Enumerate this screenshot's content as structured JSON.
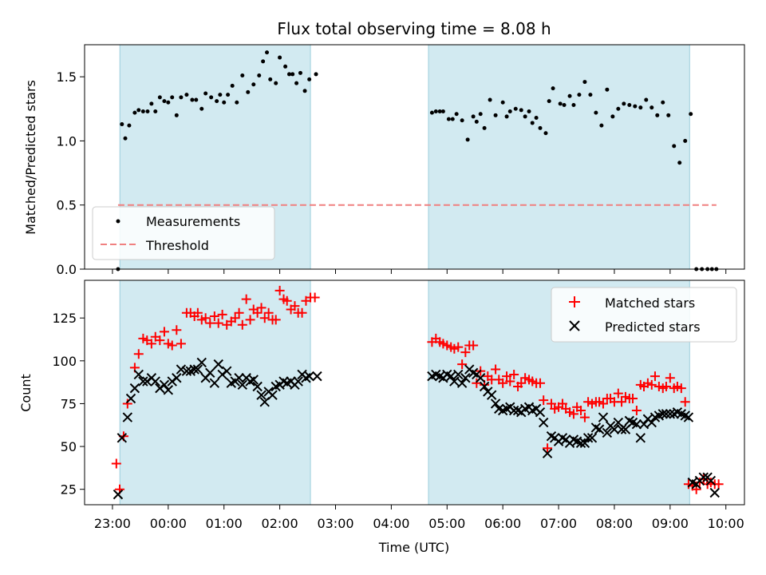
{
  "chart_data": [
    {
      "type": "scatter",
      "title": "Flux total observing time = 8.08 h",
      "xlabel": "",
      "ylabel": "Matched/Predicted stars",
      "xlim_hours": [
        -1.5,
        10.333
      ],
      "ylim": [
        0,
        1.75
      ],
      "yticks": [
        0.0,
        0.5,
        1.0,
        1.5
      ],
      "ytick_labels": [
        "0.0",
        "0.5",
        "1.0",
        "1.5"
      ],
      "xtick_labels": [],
      "legend_position": "lower-left",
      "legend": [
        "Measurements",
        "Threshold"
      ],
      "shaded_intervals_hours": [
        [
          -0.867,
          2.55
        ],
        [
          4.667,
          9.35
        ]
      ],
      "threshold": {
        "name": "Threshold",
        "y": 0.5,
        "x_from": -0.9,
        "x_to": 9.83,
        "color": "#f08080",
        "style": "dashed"
      },
      "series": [
        {
          "name": "Measurements",
          "marker": "dot",
          "color": "#000000",
          "x": [
            -0.9,
            -0.83,
            -0.77,
            -0.7,
            -0.6,
            -0.53,
            -0.45,
            -0.37,
            -0.3,
            -0.23,
            -0.15,
            -0.07,
            0.0,
            0.07,
            0.15,
            0.23,
            0.33,
            0.43,
            0.5,
            0.6,
            0.67,
            0.77,
            0.87,
            0.93,
            1.0,
            1.07,
            1.15,
            1.23,
            1.33,
            1.43,
            1.53,
            1.63,
            1.7,
            1.77,
            1.83,
            1.93,
            2.0,
            2.1,
            2.17,
            2.23,
            2.3,
            2.37,
            2.45,
            2.53,
            2.65,
            4.73,
            4.8,
            4.87,
            4.93,
            5.03,
            5.1,
            5.17,
            5.27,
            5.37,
            5.47,
            5.53,
            5.6,
            5.67,
            5.77,
            5.87,
            6.0,
            6.07,
            6.13,
            6.23,
            6.33,
            6.4,
            6.47,
            6.53,
            6.6,
            6.67,
            6.77,
            6.83,
            6.9,
            7.03,
            7.1,
            7.2,
            7.27,
            7.37,
            7.47,
            7.57,
            7.67,
            7.77,
            7.87,
            7.97,
            8.07,
            8.17,
            8.27,
            8.37,
            8.47,
            8.57,
            8.67,
            8.77,
            8.87,
            8.97,
            9.07,
            9.17,
            9.27,
            9.37,
            9.47,
            9.57,
            9.67,
            9.75,
            9.83
          ],
          "y": [
            0.0,
            1.13,
            1.02,
            1.12,
            1.22,
            1.24,
            1.23,
            1.23,
            1.29,
            1.23,
            1.34,
            1.31,
            1.3,
            1.34,
            1.2,
            1.34,
            1.36,
            1.32,
            1.32,
            1.25,
            1.37,
            1.34,
            1.31,
            1.36,
            1.3,
            1.36,
            1.43,
            1.3,
            1.51,
            1.38,
            1.44,
            1.51,
            1.62,
            1.69,
            1.48,
            1.45,
            1.65,
            1.58,
            1.52,
            1.52,
            1.45,
            1.53,
            1.39,
            1.48,
            1.52,
            1.22,
            1.23,
            1.23,
            1.23,
            1.17,
            1.17,
            1.21,
            1.16,
            1.01,
            1.19,
            1.15,
            1.21,
            1.1,
            1.32,
            1.2,
            1.3,
            1.19,
            1.23,
            1.25,
            1.24,
            1.19,
            1.23,
            1.14,
            1.18,
            1.1,
            1.06,
            1.31,
            1.41,
            1.29,
            1.28,
            1.35,
            1.28,
            1.36,
            1.46,
            1.36,
            1.22,
            1.12,
            1.4,
            1.19,
            1.25,
            1.29,
            1.28,
            1.27,
            1.26,
            1.32,
            1.26,
            1.2,
            1.3,
            1.2,
            0.96,
            0.83,
            1.0,
            1.21,
            0.0,
            0.0,
            0.0,
            0.0,
            0.0
          ]
        }
      ]
    },
    {
      "type": "scatter",
      "title": "",
      "xlabel": "Time (UTC)",
      "ylabel": "Count",
      "xlim_hours": [
        -1.5,
        10.333
      ],
      "ylim": [
        16,
        147
      ],
      "yticks": [
        25,
        50,
        75,
        100,
        125
      ],
      "ytick_labels": [
        "25",
        "50",
        "75",
        "100",
        "125"
      ],
      "xtick_hours": [
        -1,
        0,
        1,
        2,
        3,
        4,
        5,
        6,
        7,
        8,
        9,
        10
      ],
      "xtick_labels": [
        "23:00",
        "00:00",
        "01:00",
        "02:00",
        "03:00",
        "04:00",
        "05:00",
        "06:00",
        "07:00",
        "08:00",
        "09:00",
        "10:00"
      ],
      "legend_position": "top-right",
      "legend": [
        "Matched stars",
        "Predicted stars"
      ],
      "shaded_intervals_hours": [
        [
          -0.867,
          2.55
        ],
        [
          4.667,
          9.35
        ]
      ],
      "series": [
        {
          "name": "Matched stars",
          "marker": "plus",
          "color": "#ff0000",
          "x": [
            -0.93,
            -0.87,
            -0.8,
            -0.73,
            -0.6,
            -0.53,
            -0.45,
            -0.38,
            -0.3,
            -0.23,
            -0.15,
            -0.07,
            0.0,
            0.07,
            0.15,
            0.23,
            0.33,
            0.4,
            0.47,
            0.53,
            0.6,
            0.67,
            0.75,
            0.83,
            0.9,
            0.97,
            1.05,
            1.13,
            1.2,
            1.27,
            1.33,
            1.4,
            1.47,
            1.53,
            1.6,
            1.67,
            1.73,
            1.8,
            1.87,
            1.93,
            2.0,
            2.07,
            2.13,
            2.2,
            2.27,
            2.33,
            2.4,
            2.47,
            2.55,
            2.63,
            4.73,
            4.8,
            4.87,
            4.93,
            5.0,
            5.07,
            5.13,
            5.2,
            5.27,
            5.33,
            5.4,
            5.47,
            5.53,
            5.6,
            5.67,
            5.73,
            5.8,
            5.87,
            5.93,
            6.0,
            6.07,
            6.13,
            6.2,
            6.27,
            6.33,
            6.4,
            6.47,
            6.53,
            6.6,
            6.67,
            6.73,
            6.8,
            6.87,
            6.93,
            7.0,
            7.07,
            7.13,
            7.2,
            7.27,
            7.33,
            7.4,
            7.47,
            7.53,
            7.6,
            7.67,
            7.73,
            7.8,
            7.87,
            7.93,
            8.0,
            8.07,
            8.13,
            8.2,
            8.27,
            8.33,
            8.4,
            8.47,
            8.53,
            8.6,
            8.67,
            8.73,
            8.8,
            8.87,
            8.93,
            9.0,
            9.07,
            9.13,
            9.2,
            9.27,
            9.33,
            9.4,
            9.47,
            9.53,
            9.6,
            9.67,
            9.73,
            9.8,
            9.87
          ],
          "y": [
            40,
            25,
            56,
            75,
            96,
            104,
            113,
            112,
            110,
            114,
            112,
            117,
            110,
            109,
            118,
            110,
            128,
            128,
            126,
            128,
            124,
            125,
            122,
            126,
            122,
            127,
            121,
            123,
            125,
            128,
            121,
            136,
            124,
            130,
            128,
            131,
            125,
            128,
            124,
            124,
            141,
            136,
            135,
            130,
            132,
            128,
            128,
            135,
            137,
            137,
            111,
            113,
            111,
            110,
            109,
            108,
            107,
            108,
            98,
            105,
            109,
            109,
            87,
            94,
            86,
            91,
            89,
            95,
            89,
            87,
            91,
            88,
            92,
            85,
            87,
            90,
            89,
            88,
            87,
            87,
            77,
            49,
            75,
            72,
            73,
            75,
            72,
            70,
            69,
            73,
            71,
            67,
            76,
            75,
            76,
            76,
            75,
            78,
            78,
            76,
            81,
            76,
            79,
            78,
            78,
            71,
            86,
            85,
            87,
            86,
            91,
            85,
            84,
            85,
            90,
            84,
            85,
            84,
            76,
            28,
            27,
            25,
            29,
            31,
            28,
            29,
            28,
            28
          ]
        },
        {
          "name": "Predicted stars",
          "marker": "x",
          "color": "#000000",
          "x": [
            -0.9,
            -0.83,
            -0.73,
            -0.67,
            -0.6,
            -0.53,
            -0.45,
            -0.38,
            -0.3,
            -0.23,
            -0.15,
            -0.07,
            0.0,
            0.07,
            0.15,
            0.23,
            0.33,
            0.4,
            0.47,
            0.53,
            0.6,
            0.67,
            0.75,
            0.83,
            0.9,
            0.97,
            1.05,
            1.13,
            1.2,
            1.27,
            1.33,
            1.4,
            1.47,
            1.53,
            1.6,
            1.67,
            1.73,
            1.8,
            1.87,
            1.93,
            2.0,
            2.07,
            2.13,
            2.2,
            2.27,
            2.33,
            2.4,
            2.47,
            2.53,
            2.67,
            4.73,
            4.8,
            4.87,
            4.93,
            5.0,
            5.07,
            5.13,
            5.2,
            5.27,
            5.33,
            5.4,
            5.47,
            5.53,
            5.6,
            5.67,
            5.73,
            5.8,
            5.87,
            5.93,
            6.0,
            6.07,
            6.13,
            6.2,
            6.27,
            6.33,
            6.4,
            6.47,
            6.53,
            6.6,
            6.67,
            6.73,
            6.8,
            6.87,
            6.93,
            7.0,
            7.07,
            7.13,
            7.2,
            7.27,
            7.33,
            7.4,
            7.47,
            7.53,
            7.6,
            7.67,
            7.73,
            7.8,
            7.87,
            7.93,
            8.0,
            8.07,
            8.13,
            8.2,
            8.27,
            8.33,
            8.4,
            8.47,
            8.53,
            8.6,
            8.67,
            8.73,
            8.8,
            8.87,
            8.93,
            9.0,
            9.07,
            9.13,
            9.2,
            9.27,
            9.33,
            9.4,
            9.47,
            9.53,
            9.6,
            9.67,
            9.73,
            9.8
          ],
          "y": [
            22,
            55,
            67,
            78,
            84,
            92,
            88,
            88,
            90,
            88,
            84,
            86,
            83,
            88,
            90,
            95,
            94,
            94,
            95,
            95,
            99,
            90,
            93,
            87,
            98,
            92,
            94,
            87,
            88,
            90,
            86,
            90,
            88,
            89,
            85,
            80,
            76,
            82,
            80,
            85,
            86,
            88,
            87,
            88,
            86,
            88,
            92,
            90,
            91,
            91,
            91,
            92,
            91,
            90,
            92,
            91,
            88,
            92,
            87,
            90,
            95,
            93,
            92,
            90,
            85,
            82,
            80,
            75,
            72,
            71,
            72,
            73,
            71,
            71,
            70,
            72,
            73,
            71,
            72,
            70,
            64,
            46,
            56,
            55,
            53,
            55,
            54,
            52,
            54,
            53,
            52,
            52,
            55,
            55,
            61,
            60,
            67,
            58,
            62,
            60,
            64,
            60,
            60,
            65,
            64,
            63,
            55,
            63,
            66,
            64,
            67,
            68,
            69,
            69,
            69,
            69,
            70,
            69,
            68,
            67,
            29,
            28,
            30,
            32,
            32,
            30,
            23
          ]
        }
      ]
    }
  ]
}
